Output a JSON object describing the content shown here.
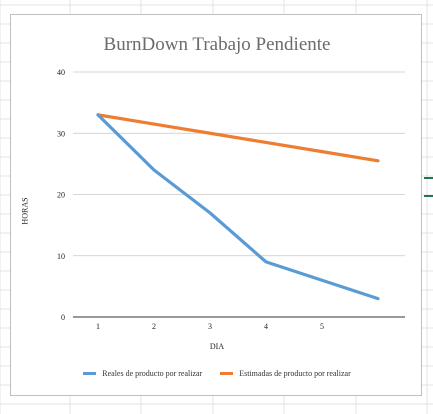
{
  "chart_data": {
    "type": "line",
    "title": "BurnDown Trabajo Pendiente",
    "xlabel": "DIA",
    "ylabel": "HORAS",
    "categories": [
      "1",
      "2",
      "3",
      "4",
      "5",
      ""
    ],
    "ylim": [
      0,
      40
    ],
    "yticks": [
      0,
      10,
      20,
      30,
      40
    ],
    "grid": true,
    "legend_position": "bottom",
    "series": [
      {
        "name": "Reales de producto por realizar",
        "color": "#5b9bd5",
        "values": [
          33,
          24,
          17,
          9,
          6,
          3
        ]
      },
      {
        "name": "Estimadas de producto por realizar",
        "color": "#ed7d31",
        "values": [
          33,
          31.5,
          30,
          28.5,
          27,
          25.5
        ]
      }
    ]
  }
}
